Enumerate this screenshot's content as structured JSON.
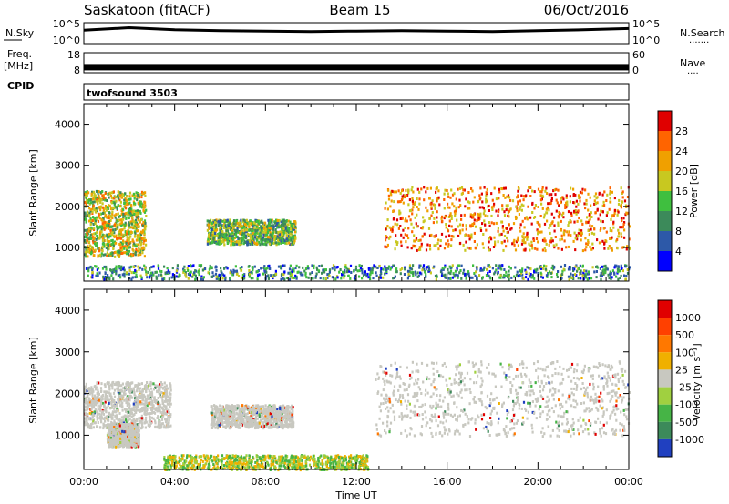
{
  "header": {
    "station": "Saskatoon (fitACF)",
    "beam": "Beam 15",
    "date": "06/Oct/2016"
  },
  "noise_panel": {
    "left_label": "N.Sky",
    "right_label": "N.Search",
    "right_dots": "·······",
    "left_ticks": [
      "10^5",
      "10^0"
    ],
    "right_ticks": [
      "10^5",
      "10^0"
    ]
  },
  "freq_panel": {
    "left_label_1": "Freq.",
    "left_label_2": "[MHz]",
    "right_label": "Nave",
    "right_dots": "····",
    "left_ticks": [
      "18",
      "8"
    ],
    "right_ticks": [
      "60",
      "0"
    ]
  },
  "cpid_panel": {
    "label": "CPID",
    "mode": "twofsound 3503"
  },
  "colors": {
    "power": [
      "#0000ff",
      "#2d59a8",
      "#3c8a5a",
      "#3fbf3f",
      "#c8c820",
      "#f0a000",
      "#ff6400",
      "#e00000"
    ],
    "velocity": [
      "#2040c0",
      "#3c8a5a",
      "#46b446",
      "#a0d040",
      "#c8c8c0",
      "#f0b000",
      "#ff7800",
      "#ff4000",
      "#e00000"
    ],
    "velocity_gray": "#c8c8c0"
  },
  "chart_data": [
    {
      "type": "line",
      "panel": "noise",
      "x": [
        "00:00",
        "02:00",
        "04:00",
        "06:00",
        "08:00",
        "10:00",
        "12:00",
        "14:00",
        "16:00",
        "18:00",
        "20:00",
        "22:00",
        "00:00"
      ],
      "series": [
        {
          "values": [
            3.2,
            3.8,
            3.3,
            3.1,
            3.0,
            2.9,
            3.0,
            3.1,
            3.0,
            2.9,
            3.1,
            3.3,
            3.6
          ]
        }
      ],
      "ylim": [
        0,
        5
      ],
      "ylabel": "N.Sky"
    },
    {
      "type": "line",
      "panel": "frequency",
      "x": [
        "00:00",
        "06:00",
        "12:00",
        "18:00",
        "00:00"
      ],
      "series": [
        {
          "values": [
            11,
            11,
            11,
            11,
            11
          ]
        }
      ],
      "ylim": [
        8,
        18
      ],
      "ylabel": "Freq. [MHz]"
    },
    {
      "type": "heatmap",
      "panel": "power",
      "ylabel": "Slant Range [km]",
      "yticks": [
        "1000",
        "2000",
        "3000",
        "4000"
      ],
      "ylim": [
        180,
        4500
      ],
      "colorbar": {
        "label": "Power [dB]",
        "ticks": [
          "4",
          "8",
          "12",
          "16",
          "20",
          "24",
          "28"
        ]
      },
      "regions": [
        {
          "t0": 0.0,
          "t1": 2.7,
          "r0": 800,
          "r1": 2400,
          "level": 0.55
        },
        {
          "t0": 5.4,
          "t1": 9.3,
          "r0": 1100,
          "r1": 1700,
          "level": 0.45
        },
        {
          "t0": 13.2,
          "t1": 24.0,
          "r0": 950,
          "r1": 2500,
          "level": 0.75
        },
        {
          "t0": 0.0,
          "t1": 24.0,
          "r0": 250,
          "r1": 600,
          "level": 0.3
        }
      ]
    },
    {
      "type": "heatmap",
      "panel": "velocity",
      "ylabel": "Slant Range [km]",
      "xlabel": "Time UT",
      "xticks": [
        "00:00",
        "04:00",
        "08:00",
        "12:00",
        "16:00",
        "20:00",
        "00:00"
      ],
      "yticks": [
        "1000",
        "2000",
        "3000",
        "4000"
      ],
      "ylim": [
        180,
        4500
      ],
      "colorbar": {
        "label": "Velocity [m s⁻¹]",
        "ticks": [
          "1000",
          "500",
          "100",
          "25",
          "-25",
          "-100",
          "-500",
          "-1000"
        ]
      },
      "regions": [
        {
          "t0": 0.0,
          "t1": 3.8,
          "r0": 1200,
          "r1": 2300,
          "level": 0.5
        },
        {
          "t0": 1.0,
          "t1": 2.4,
          "r0": 750,
          "r1": 1300,
          "level": 0.35
        },
        {
          "t0": 5.6,
          "t1": 9.2,
          "r0": 1200,
          "r1": 1750,
          "level": 0.5
        },
        {
          "t0": 12.8,
          "t1": 24.0,
          "r0": 1000,
          "r1": 2800,
          "level": 0.5
        },
        {
          "t0": 3.5,
          "t1": 12.5,
          "r0": 200,
          "r1": 550,
          "level": 0.6
        }
      ]
    }
  ]
}
